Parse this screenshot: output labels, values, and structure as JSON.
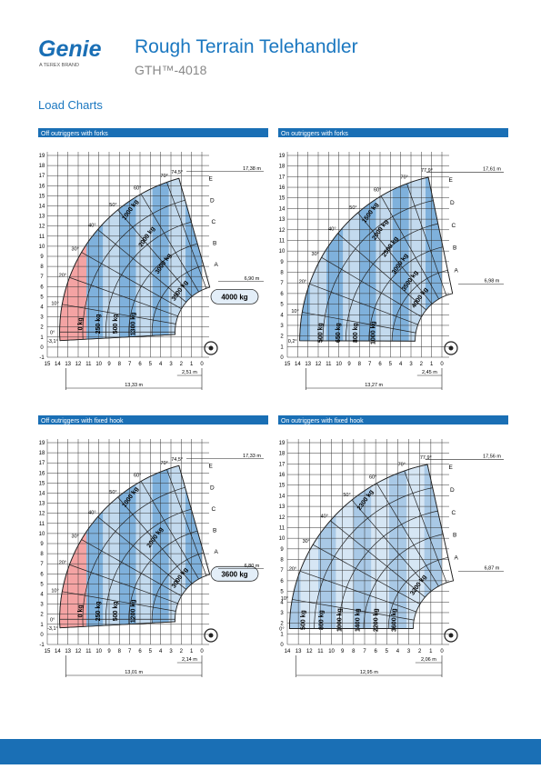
{
  "header": {
    "brand": "Genie",
    "brand_sub": "A TEREX BRAND",
    "title": "Rough Terrain Telehandler",
    "model": "GTH™-4018"
  },
  "section_title": "Load Charts",
  "charts": [
    {
      "heading": "Off outriggers with forks",
      "y_ticks": [
        19,
        18,
        17,
        16,
        15,
        14,
        13,
        12,
        11,
        10,
        9,
        8,
        7,
        6,
        5,
        4,
        3,
        2,
        1,
        0,
        -1
      ],
      "x_ticks": [
        15,
        14,
        13,
        12,
        11,
        10,
        9,
        8,
        7,
        6,
        5,
        4,
        3,
        2,
        1,
        0
      ],
      "angles": [
        "74,5°",
        "70°",
        "60°",
        "50°",
        "40°",
        "30°",
        "20°",
        "10°",
        "0°",
        "-3,1°"
      ],
      "booms": [
        "A",
        "B",
        "C",
        "D",
        "E"
      ],
      "loads": [
        "0 kg",
        "250 kg",
        "500 kg",
        "1300 kg",
        "1000 kg",
        "2000 kg",
        "3000 kg",
        "3500 kg"
      ],
      "callout": "4000 kg",
      "dims": [
        "17,38 m",
        "6,90 m",
        "2,51 m",
        "13,33 m"
      ]
    },
    {
      "heading": "On outriggers with forks",
      "y_ticks": [
        19,
        18,
        17,
        16,
        15,
        14,
        13,
        12,
        11,
        10,
        9,
        8,
        7,
        6,
        5,
        4,
        3,
        2,
        1,
        0
      ],
      "x_ticks": [
        15,
        14,
        13,
        12,
        11,
        10,
        9,
        8,
        7,
        6,
        5,
        4,
        3,
        2,
        1,
        0
      ],
      "angles": [
        "77,9°",
        "70°",
        "60°",
        "50°",
        "40°",
        "30°",
        "20°",
        "10°",
        "0,2°"
      ],
      "booms": [
        "A",
        "B",
        "C",
        "D",
        "E"
      ],
      "loads": [
        "500 kg",
        "650 kg",
        "800 kg",
        "1000 kg",
        "1500 kg",
        "2000 kg",
        "2500 kg",
        "3000 kg",
        "3500 kg",
        "4000 kg"
      ],
      "dims": [
        "17,61 m",
        "6,98 m",
        "2,45 m",
        "13,27 m"
      ]
    },
    {
      "heading": "Off outriggers with fixed hook",
      "y_ticks": [
        19,
        18,
        17,
        16,
        15,
        14,
        13,
        12,
        11,
        10,
        9,
        8,
        7,
        6,
        5,
        4,
        3,
        2,
        1,
        0,
        -1
      ],
      "x_ticks": [
        15,
        14,
        13,
        12,
        11,
        10,
        9,
        8,
        7,
        6,
        5,
        4,
        3,
        2,
        1,
        0
      ],
      "angles": [
        "74,5°",
        "70°",
        "60°",
        "50°",
        "40°",
        "30°",
        "20°",
        "10°",
        "0°",
        "-3,1°"
      ],
      "booms": [
        "A",
        "B",
        "C",
        "D",
        "E"
      ],
      "loads": [
        "0 kg",
        "250 kg",
        "500 kg",
        "1200 kg",
        "1000 kg",
        "2000 kg",
        "3000 kg"
      ],
      "callout": "3600 kg",
      "dims": [
        "17,33 m",
        "6,80 m",
        "2,14 m",
        "13,01 m"
      ]
    },
    {
      "heading": "On outriggers with fixed hook",
      "y_ticks": [
        19,
        18,
        17,
        16,
        15,
        14,
        13,
        12,
        11,
        10,
        9,
        8,
        7,
        6,
        5,
        4,
        3,
        2,
        1,
        0
      ],
      "x_ticks": [
        14,
        13,
        12,
        11,
        10,
        9,
        8,
        7,
        6,
        5,
        4,
        3,
        2,
        1,
        0
      ],
      "angles": [
        "77,9°",
        "70°",
        "60°",
        "50°",
        "40°",
        "30°",
        "20°",
        "10°",
        "0°"
      ],
      "booms": [
        "A",
        "B",
        "C",
        "D",
        "E"
      ],
      "loads": [
        "500 kg",
        "800 kg",
        "1000 kg",
        "1400 kg",
        "2200 kg",
        "3600 kg",
        "2300 kg",
        "3200 kg"
      ],
      "dims": [
        "17,56 m",
        "6,87 m",
        "2,06 m",
        "12,95 m"
      ]
    }
  ]
}
